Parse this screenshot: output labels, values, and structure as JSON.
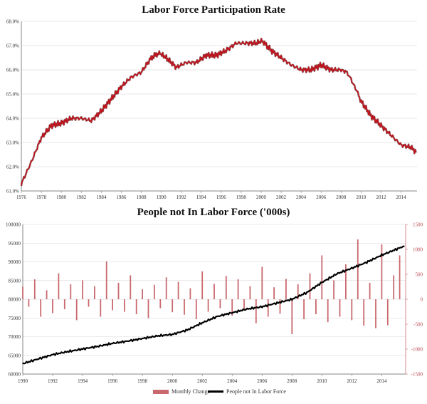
{
  "chart_data": [
    {
      "type": "line",
      "title": "Labor Force Participation Rate",
      "xlim": [
        1976,
        2015.6
      ],
      "ylim": [
        61.0,
        68.0
      ],
      "x_ticks": [
        "1976",
        "1978",
        "1980",
        "1982",
        "1984",
        "1986",
        "1988",
        "1990",
        "1992",
        "1994",
        "1996",
        "1998",
        "2000",
        "2002",
        "2004",
        "2006",
        "2008",
        "2010",
        "2012",
        "2014"
      ],
      "y_ticks": [
        "61.0%",
        "62.0%",
        "63.0%",
        "64.0%",
        "65.0%",
        "66.0%",
        "67.0%",
        "68.0%"
      ],
      "series": [
        {
          "color": "#c0121b",
          "x": [
            1976.0,
            1977.0,
            1978.0,
            1979.0,
            1980.0,
            1981.0,
            1982.0,
            1983.0,
            1984.0,
            1985.0,
            1986.0,
            1987.0,
            1988.0,
            1989.0,
            1989.8,
            1990.5,
            1991.5,
            1992.5,
            1993.5,
            1994.5,
            1995.5,
            1996.5,
            1997.5,
            1998.5,
            1999.5,
            2000.1,
            2001.0,
            2002.0,
            2003.0,
            2004.0,
            2005.0,
            2006.0,
            2007.0,
            2008.0,
            2008.6,
            2009.0,
            2009.6,
            2010.0,
            2011.0,
            2012.0,
            2013.0,
            2014.0,
            2015.0,
            2015.5
          ],
          "values": [
            61.3,
            62.2,
            63.2,
            63.7,
            63.8,
            64.0,
            64.0,
            63.9,
            64.3,
            64.8,
            65.3,
            65.7,
            65.9,
            66.5,
            66.7,
            66.5,
            66.1,
            66.3,
            66.3,
            66.6,
            66.6,
            66.8,
            67.1,
            67.1,
            67.1,
            67.2,
            66.8,
            66.5,
            66.2,
            66.0,
            66.0,
            66.2,
            66.0,
            66.0,
            65.9,
            65.6,
            65.1,
            64.7,
            64.1,
            63.7,
            63.3,
            62.9,
            62.8,
            62.6
          ]
        }
      ]
    },
    {
      "type": "bar+line",
      "title": "People not In Labor Force ('000s)",
      "xlim": [
        1990,
        2015.6
      ],
      "ylim_left": [
        60000,
        100000
      ],
      "ylim_right": [
        -1500,
        1500
      ],
      "x_ticks": [
        "1990",
        "1992",
        "1994",
        "1996",
        "1998",
        "2000",
        "2002",
        "2004",
        "2006",
        "2008",
        "2010",
        "2012",
        "2014"
      ],
      "y_ticks_left": [
        "60000",
        "65000",
        "70000",
        "75000",
        "80000",
        "85000",
        "90000",
        "95000",
        "100000"
      ],
      "y_ticks_right": [
        "-1500",
        "-1000",
        "-500",
        "0",
        "500",
        "1000",
        "1500"
      ],
      "series": [
        {
          "name": "Monthly Change",
          "axis": "right",
          "type": "bar",
          "color": "#c9696e",
          "x": [
            1990.0,
            1990.4,
            1990.8,
            1991.2,
            1991.6,
            1992.0,
            1992.4,
            1992.8,
            1993.2,
            1993.6,
            1994.0,
            1994.4,
            1994.8,
            1995.2,
            1995.6,
            1996.0,
            1996.4,
            1996.8,
            1997.2,
            1997.6,
            1998.0,
            1998.4,
            1998.8,
            1999.2,
            1999.6,
            2000.0,
            2000.4,
            2000.8,
            2001.2,
            2001.6,
            2002.0,
            2002.4,
            2002.8,
            2003.2,
            2003.6,
            2004.0,
            2004.4,
            2004.8,
            2005.2,
            2005.6,
            2006.0,
            2006.4,
            2006.8,
            2007.2,
            2007.6,
            2008.0,
            2008.4,
            2008.8,
            2009.2,
            2009.6,
            2010.0,
            2010.4,
            2010.8,
            2011.2,
            2011.6,
            2012.0,
            2012.4,
            2012.8,
            2013.2,
            2013.6,
            2014.0,
            2014.4,
            2014.8,
            2015.2
          ],
          "values": [
            250,
            -150,
            400,
            -350,
            180,
            -280,
            520,
            -200,
            300,
            -420,
            380,
            -150,
            260,
            -350,
            760,
            -220,
            330,
            -250,
            480,
            -300,
            200,
            -380,
            290,
            -180,
            440,
            -260,
            350,
            -310,
            220,
            -400,
            560,
            -250,
            310,
            -180,
            470,
            -330,
            400,
            -210,
            260,
            -480,
            650,
            -350,
            240,
            -290,
            410,
            -700,
            300,
            -400,
            520,
            -300,
            880,
            -460,
            380,
            -350,
            700,
            -420,
            1200,
            -530,
            330,
            -580,
            1100,
            -520,
            480,
            880
          ]
        },
        {
          "name": "People not In Labor Force",
          "axis": "left",
          "type": "line",
          "color": "#000000",
          "x": [
            1990.0,
            1991.0,
            1992.0,
            1993.0,
            1994.0,
            1995.0,
            1996.0,
            1997.0,
            1998.0,
            1999.0,
            2000.0,
            2001.0,
            2002.0,
            2003.0,
            2004.0,
            2005.0,
            2006.0,
            2007.0,
            2008.0,
            2009.0,
            2010.0,
            2011.0,
            2012.0,
            2013.0,
            2014.0,
            2015.0,
            2015.5
          ],
          "values": [
            62800,
            64000,
            65200,
            66000,
            66700,
            67400,
            68200,
            68800,
            69500,
            70200,
            70600,
            71800,
            73700,
            75400,
            76400,
            77400,
            78000,
            79000,
            80000,
            81800,
            84500,
            86800,
            88300,
            89900,
            91800,
            93400,
            94200
          ]
        }
      ]
    }
  ],
  "legend": {
    "monthly_change": "Monthly Change",
    "people_not_in_lf": "People not In Labor Force"
  }
}
